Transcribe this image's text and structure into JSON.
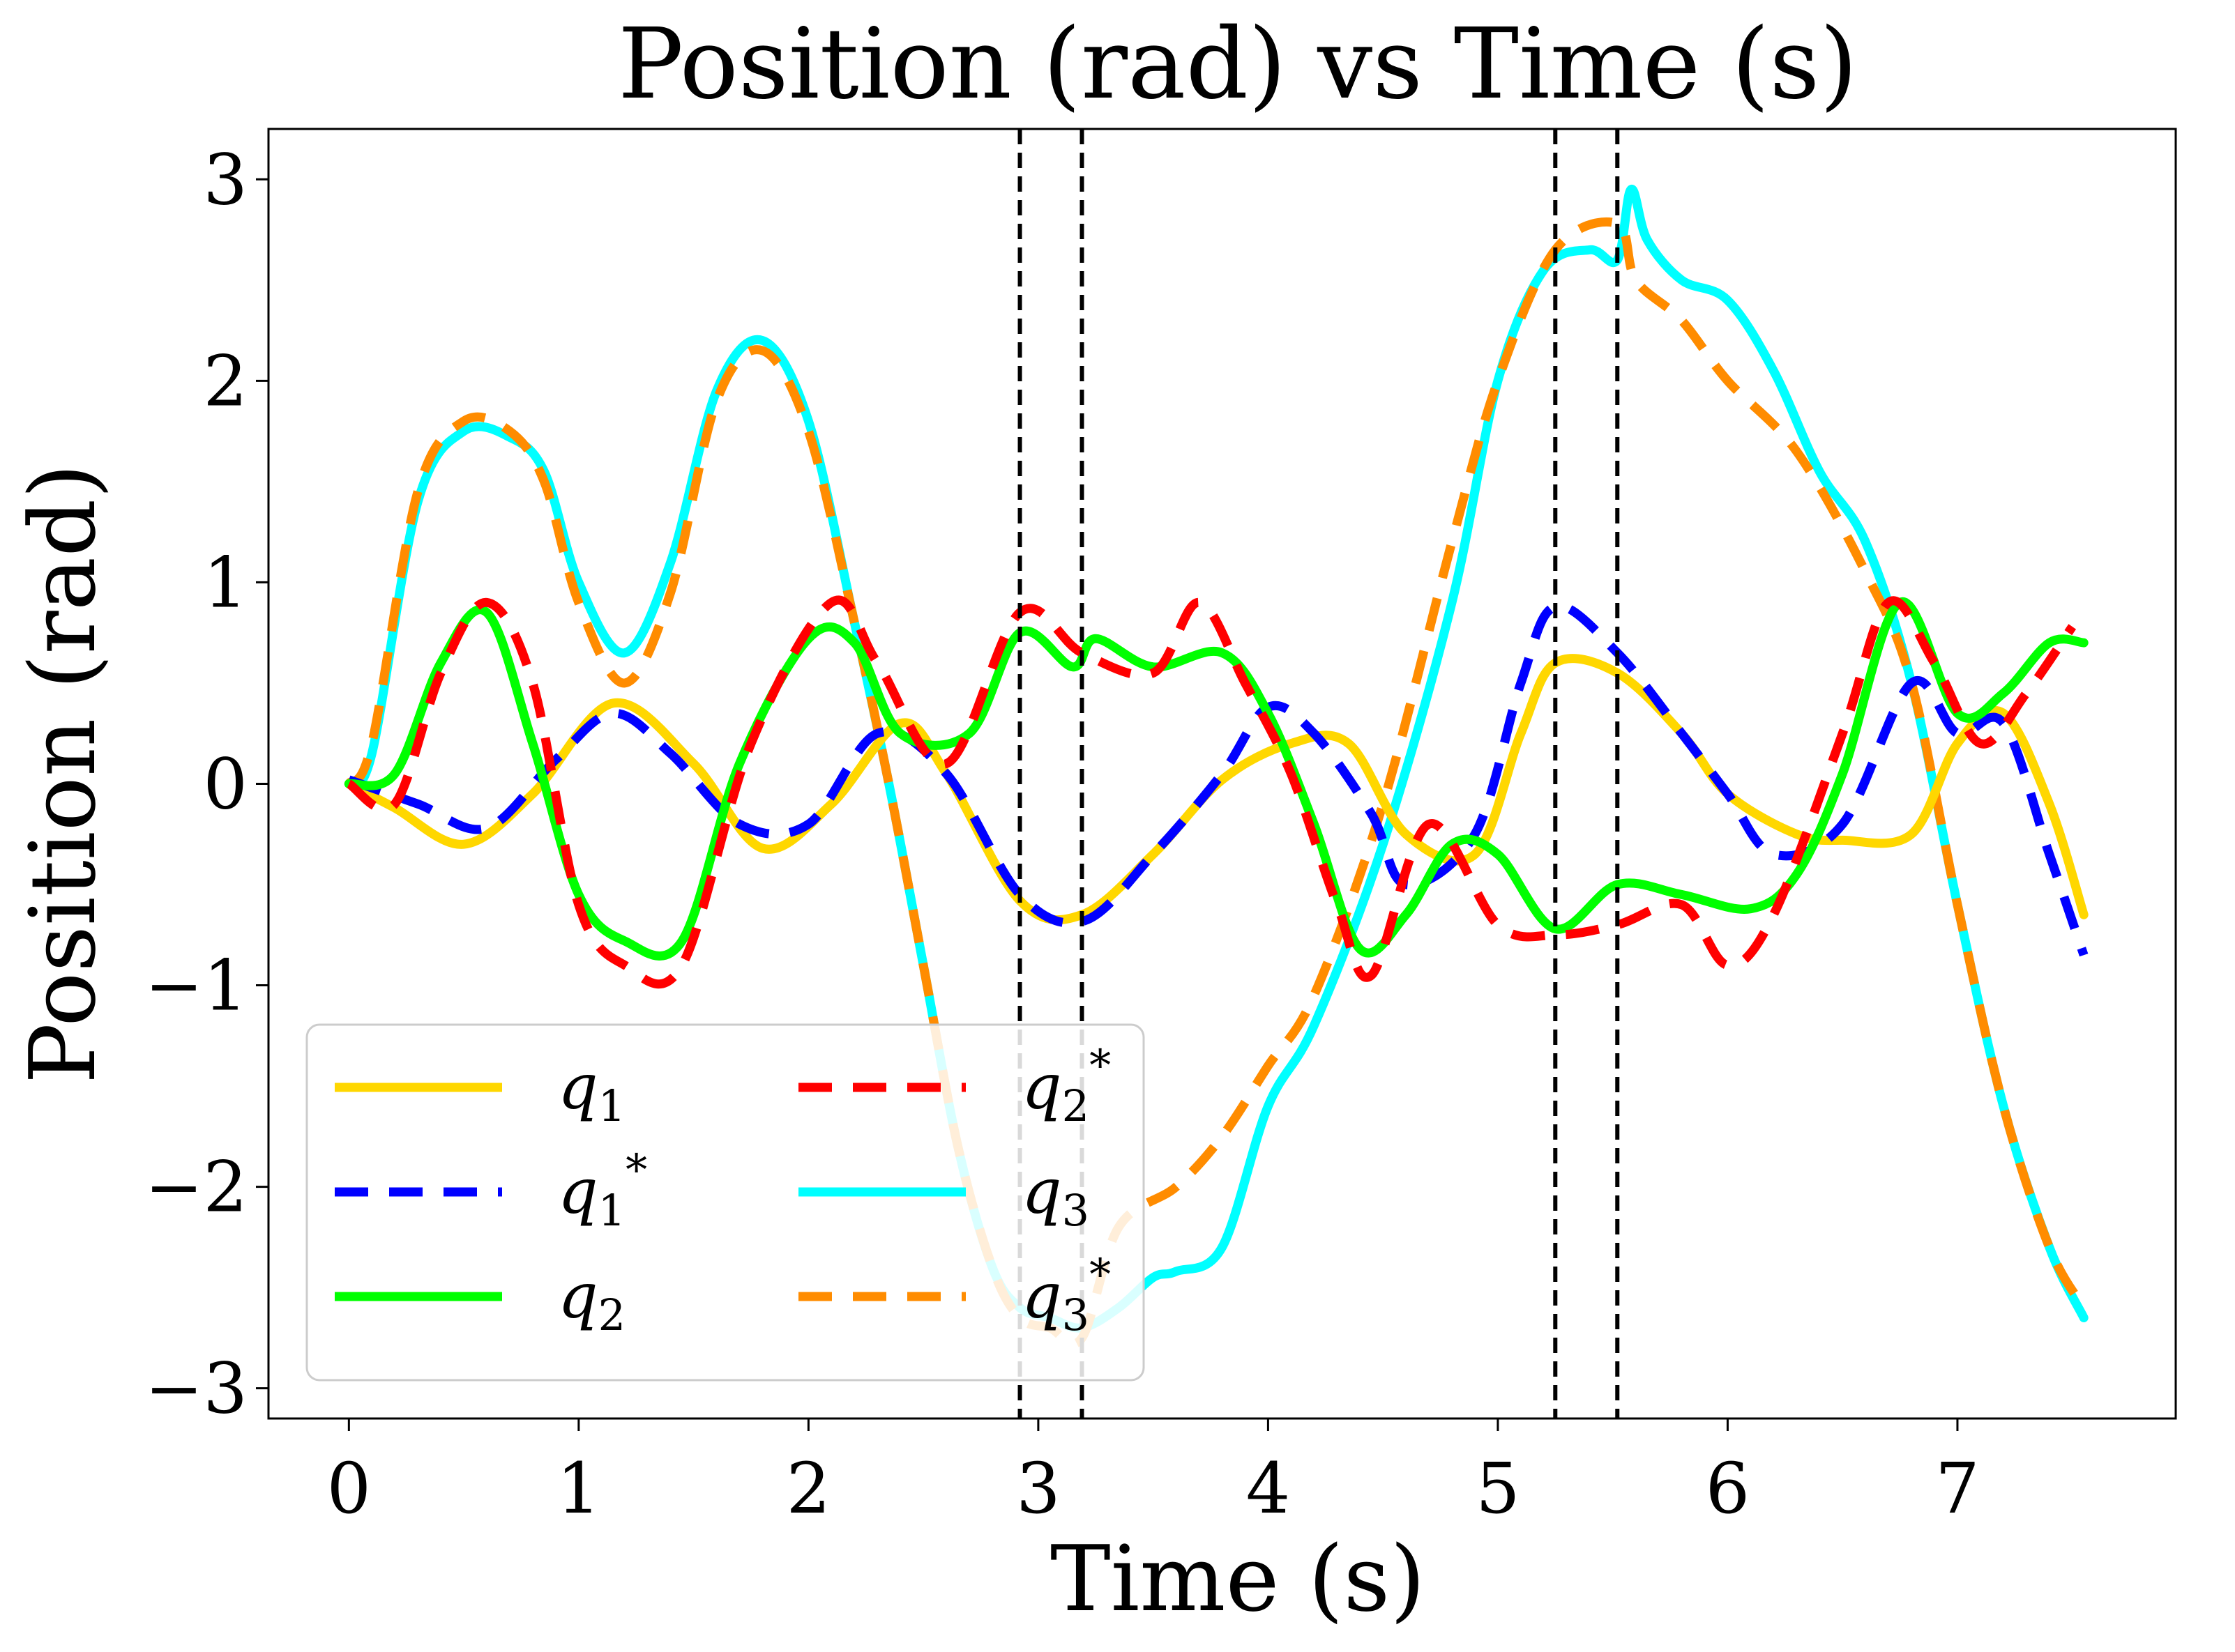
{
  "chart_data": {
    "type": "line",
    "title": "Position (rad) vs Time (s)",
    "xlabel": "Time (s)",
    "ylabel": "Position (rad)",
    "xlim": [
      -0.35,
      7.95
    ],
    "ylim": [
      -3.15,
      3.25
    ],
    "xticks": [
      0,
      1,
      2,
      3,
      4,
      5,
      6,
      7
    ],
    "xtick_labels": [
      "0",
      "1",
      "2",
      "3",
      "4",
      "5",
      "6",
      "7"
    ],
    "yticks": [
      -3,
      -2,
      -1,
      0,
      1,
      2,
      3
    ],
    "ytick_labels": [
      "−3",
      "−2",
      "−1",
      "0",
      "1",
      "2",
      "3"
    ],
    "grid": false,
    "legend_position": "lower-left",
    "legend_columns": 2,
    "vlines": [
      2.92,
      3.19,
      5.25,
      5.52
    ],
    "series": [
      {
        "name": "q1",
        "label_base": "q",
        "label_sub": "1",
        "label_sup": "",
        "color": "#FFD700",
        "dashed": false,
        "x": [
          0,
          0.2,
          0.5,
          0.8,
          1.15,
          1.5,
          1.8,
          2.1,
          2.4,
          2.6,
          2.92,
          3.19,
          3.5,
          3.8,
          4.1,
          4.35,
          4.6,
          4.9,
          5.1,
          5.25,
          5.52,
          5.8,
          6.0,
          6.3,
          6.5,
          6.8,
          7.0,
          7.2,
          7.4,
          7.55
        ],
        "y": [
          0,
          -0.12,
          -0.3,
          -0.05,
          0.4,
          0.1,
          -0.32,
          -0.1,
          0.3,
          0.05,
          -0.58,
          -0.65,
          -0.35,
          0.02,
          0.2,
          0.2,
          -0.25,
          -0.35,
          0.25,
          0.6,
          0.55,
          0.25,
          -0.05,
          -0.25,
          -0.28,
          -0.25,
          0.2,
          0.35,
          -0.1,
          -0.65
        ]
      },
      {
        "name": "q1*",
        "label_base": "q",
        "label_sub": "1",
        "label_sup": "*",
        "color": "#0000FF",
        "dashed": true,
        "x": [
          0,
          0.3,
          0.6,
          0.9,
          1.15,
          1.4,
          1.7,
          2.0,
          2.3,
          2.6,
          2.92,
          3.2,
          3.5,
          3.8,
          4.0,
          4.2,
          4.45,
          4.6,
          4.9,
          5.1,
          5.25,
          5.52,
          5.8,
          6.0,
          6.2,
          6.5,
          6.8,
          7.0,
          7.2,
          7.4,
          7.55
        ],
        "y": [
          0.02,
          -0.1,
          -0.22,
          0.12,
          0.35,
          0.15,
          -0.2,
          -0.2,
          0.25,
          0.05,
          -0.55,
          -0.68,
          -0.35,
          0.05,
          0.38,
          0.25,
          -0.15,
          -0.5,
          -0.25,
          0.5,
          0.88,
          0.65,
          0.25,
          -0.05,
          -0.35,
          -0.2,
          0.5,
          0.25,
          0.3,
          -0.35,
          -0.85
        ]
      },
      {
        "name": "q2",
        "label_base": "q",
        "label_sub": "2",
        "label_sup": "",
        "color": "#00FF00",
        "dashed": false,
        "x": [
          0,
          0.2,
          0.4,
          0.6,
          0.8,
          1.0,
          1.2,
          1.45,
          1.7,
          2.0,
          2.2,
          2.4,
          2.7,
          2.92,
          3.15,
          3.25,
          3.5,
          3.8,
          4.0,
          4.2,
          4.4,
          4.6,
          4.8,
          5.0,
          5.25,
          5.52,
          5.8,
          6.1,
          6.3,
          6.5,
          6.75,
          7.0,
          7.2,
          7.4,
          7.55
        ],
        "y": [
          0,
          0.05,
          0.6,
          0.85,
          0.2,
          -0.55,
          -0.78,
          -0.78,
          0.1,
          0.72,
          0.7,
          0.25,
          0.25,
          0.75,
          0.58,
          0.72,
          0.58,
          0.65,
          0.35,
          -0.2,
          -0.82,
          -0.65,
          -0.3,
          -0.35,
          -0.72,
          -0.5,
          -0.55,
          -0.62,
          -0.45,
          0.05,
          0.9,
          0.35,
          0.45,
          0.7,
          0.7
        ]
      },
      {
        "name": "q2*",
        "label_base": "q",
        "label_sub": "2",
        "label_sup": "*",
        "color": "#FF0000",
        "dashed": true,
        "x": [
          0,
          0.2,
          0.4,
          0.6,
          0.8,
          1.0,
          1.2,
          1.45,
          1.75,
          2.1,
          2.3,
          2.6,
          2.92,
          3.19,
          3.5,
          3.7,
          3.9,
          4.1,
          4.3,
          4.45,
          4.7,
          5.0,
          5.25,
          5.52,
          5.8,
          6.0,
          6.2,
          6.5,
          6.7,
          6.9,
          7.1,
          7.3,
          7.5
        ],
        "y": [
          0,
          -0.1,
          0.55,
          0.9,
          0.5,
          -0.6,
          -0.9,
          -0.9,
          0.2,
          0.9,
          0.6,
          0.1,
          0.85,
          0.65,
          0.55,
          0.9,
          0.5,
          0.05,
          -0.6,
          -0.95,
          -0.2,
          -0.7,
          -0.75,
          -0.7,
          -0.6,
          -0.9,
          -0.65,
          0.25,
          0.9,
          0.6,
          0.2,
          0.45,
          0.78
        ]
      },
      {
        "name": "q3",
        "label_base": "q",
        "label_sub": "3",
        "label_sup": "",
        "color": "#00FFFF",
        "dashed": false,
        "x": [
          0,
          0.1,
          0.3,
          0.5,
          0.7,
          0.85,
          1.0,
          1.2,
          1.4,
          1.6,
          1.8,
          2.0,
          2.2,
          2.35,
          2.5,
          2.65,
          2.8,
          2.92,
          3.05,
          3.19,
          3.35,
          3.5,
          3.6,
          3.8,
          4.0,
          4.2,
          4.5,
          4.8,
          5.0,
          5.2,
          5.4,
          5.52,
          5.58,
          5.65,
          5.8,
          6.0,
          6.2,
          6.4,
          6.6,
          6.8,
          7.0,
          7.2,
          7.4,
          7.55
        ],
        "y": [
          0,
          0.15,
          1.4,
          1.75,
          1.72,
          1.55,
          1.0,
          0.65,
          1.1,
          1.95,
          2.2,
          1.8,
          0.8,
          0.0,
          -0.9,
          -1.8,
          -2.4,
          -2.6,
          -2.65,
          -2.7,
          -2.6,
          -2.45,
          -2.42,
          -2.3,
          -1.6,
          -1.2,
          -0.3,
          0.9,
          2.0,
          2.55,
          2.65,
          2.6,
          2.95,
          2.7,
          2.5,
          2.4,
          2.05,
          1.55,
          1.2,
          0.5,
          -0.6,
          -1.6,
          -2.3,
          -2.65
        ]
      },
      {
        "name": "q3*",
        "label_base": "q",
        "label_sub": "3",
        "label_sup": "*",
        "color": "#FF8C00",
        "dashed": true,
        "x": [
          0,
          0.1,
          0.3,
          0.5,
          0.7,
          0.85,
          1.0,
          1.2,
          1.4,
          1.6,
          1.8,
          2.0,
          2.2,
          2.35,
          2.5,
          2.65,
          2.8,
          2.92,
          3.05,
          3.19,
          3.35,
          3.6,
          3.8,
          4.0,
          4.2,
          4.5,
          4.8,
          5.0,
          5.25,
          5.52,
          5.6,
          5.8,
          6.0,
          6.3,
          6.6,
          6.8,
          7.0,
          7.2,
          7.4,
          7.55
        ],
        "y": [
          0,
          0.2,
          1.45,
          1.8,
          1.75,
          1.5,
          0.9,
          0.5,
          0.95,
          1.9,
          2.15,
          1.75,
          0.8,
          0.0,
          -0.9,
          -1.8,
          -2.4,
          -2.65,
          -2.7,
          -2.75,
          -2.2,
          -2.0,
          -1.75,
          -1.4,
          -1.05,
          -0.1,
          1.2,
          2.0,
          2.65,
          2.78,
          2.5,
          2.3,
          2.0,
          1.65,
          1.05,
          0.5,
          -0.6,
          -1.6,
          -2.3,
          -2.6
        ]
      }
    ]
  }
}
